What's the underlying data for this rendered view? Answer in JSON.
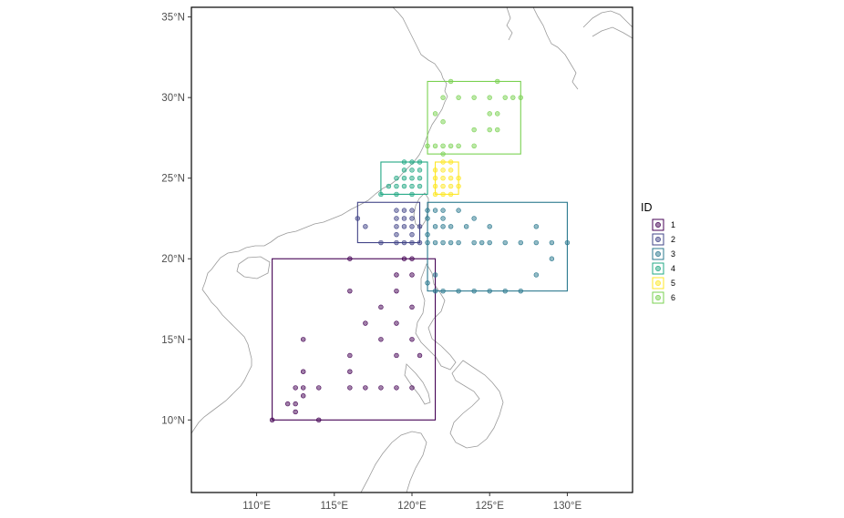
{
  "chart_data": {
    "type": "scatter",
    "title": "",
    "xlabel": "",
    "ylabel": "",
    "xlim": [
      105.8,
      134.2
    ],
    "ylim": [
      5.5,
      35.6
    ],
    "x_ticks": [
      {
        "value": 110,
        "label": "110°E"
      },
      {
        "value": 115,
        "label": "115°E"
      },
      {
        "value": 120,
        "label": "120°E"
      },
      {
        "value": 125,
        "label": "125°E"
      },
      {
        "value": 130,
        "label": "130°E"
      }
    ],
    "y_ticks": [
      {
        "value": 10,
        "label": "10°N"
      },
      {
        "value": 15,
        "label": "15°N"
      },
      {
        "value": 20,
        "label": "20°N"
      },
      {
        "value": 25,
        "label": "25°N"
      },
      {
        "value": 30,
        "label": "30°N"
      }
    ],
    "y_top_label": {
      "value": 35,
      "label": "35°N"
    },
    "grid": false,
    "legend": {
      "title": "ID",
      "position": "right"
    },
    "series": [
      {
        "name": "1",
        "color": "#440154",
        "box": {
          "lon": [
            111,
            121.5
          ],
          "lat": [
            10,
            20
          ]
        },
        "points": [
          [
            111,
            10
          ],
          [
            112,
            11
          ],
          [
            112.5,
            12
          ],
          [
            112.5,
            11
          ],
          [
            113,
            11.5
          ],
          [
            113,
            12
          ],
          [
            113,
            13
          ],
          [
            113,
            15
          ],
          [
            112.5,
            10.5
          ],
          [
            114,
            10
          ],
          [
            114,
            12
          ],
          [
            116,
            12
          ],
          [
            116,
            13
          ],
          [
            116,
            14
          ],
          [
            116,
            18
          ],
          [
            116,
            20
          ],
          [
            117,
            16
          ],
          [
            117,
            12
          ],
          [
            118,
            17
          ],
          [
            118,
            15
          ],
          [
            118,
            12
          ],
          [
            119,
            19
          ],
          [
            119,
            18
          ],
          [
            119,
            16
          ],
          [
            119,
            14
          ],
          [
            119,
            12
          ],
          [
            119.5,
            20
          ],
          [
            120,
            17
          ],
          [
            120,
            15
          ],
          [
            120,
            12
          ],
          [
            120.5,
            14
          ],
          [
            120,
            19
          ],
          [
            120,
            20
          ]
        ]
      },
      {
        "name": "2",
        "color": "#414487",
        "box": {
          "lon": [
            116.5,
            120.5
          ],
          "lat": [
            21,
            23.5
          ]
        },
        "points": [
          [
            116.5,
            22.5
          ],
          [
            117,
            22
          ],
          [
            118,
            21
          ],
          [
            119,
            21
          ],
          [
            119.5,
            21
          ],
          [
            119,
            21.5
          ],
          [
            119,
            22
          ],
          [
            119,
            22.5
          ],
          [
            119,
            23
          ],
          [
            119.5,
            22
          ],
          [
            119.5,
            22.5
          ],
          [
            119.5,
            23
          ],
          [
            120,
            21
          ],
          [
            120,
            21.5
          ],
          [
            120,
            22
          ],
          [
            120,
            22.5
          ],
          [
            120,
            23
          ],
          [
            120.5,
            21
          ],
          [
            120.5,
            22
          ]
        ]
      },
      {
        "name": "3",
        "color": "#2a788e",
        "box": {
          "lon": [
            121,
            130
          ],
          "lat": [
            18,
            23.5
          ]
        },
        "points": [
          [
            121,
            23
          ],
          [
            121,
            22.5
          ],
          [
            121,
            21.5
          ],
          [
            121,
            21
          ],
          [
            121.5,
            23
          ],
          [
            121.5,
            22
          ],
          [
            121.5,
            21
          ],
          [
            122,
            23
          ],
          [
            122,
            22.5
          ],
          [
            122,
            22
          ],
          [
            122,
            21
          ],
          [
            122.5,
            22
          ],
          [
            122.5,
            21
          ],
          [
            123,
            23
          ],
          [
            123,
            21
          ],
          [
            123.5,
            22
          ],
          [
            124,
            22.5
          ],
          [
            124,
            21
          ],
          [
            124.5,
            21
          ],
          [
            125,
            22
          ],
          [
            125,
            21
          ],
          [
            126,
            21
          ],
          [
            127,
            21
          ],
          [
            128,
            22
          ],
          [
            128,
            21
          ],
          [
            128,
            19
          ],
          [
            129,
            21
          ],
          [
            129,
            20
          ],
          [
            130,
            21
          ],
          [
            121.5,
            18
          ],
          [
            122,
            18
          ],
          [
            123,
            18
          ],
          [
            124,
            18
          ],
          [
            125,
            18
          ],
          [
            126,
            18
          ],
          [
            127,
            18
          ],
          [
            121.5,
            19
          ],
          [
            121,
            18.5
          ]
        ]
      },
      {
        "name": "4",
        "color": "#22a884",
        "box": {
          "lon": [
            118,
            121
          ],
          "lat": [
            24,
            26
          ]
        },
        "points": [
          [
            118,
            24
          ],
          [
            118.5,
            24.5
          ],
          [
            119,
            24
          ],
          [
            119,
            24.5
          ],
          [
            119,
            25
          ],
          [
            119.5,
            24.5
          ],
          [
            119.5,
            25
          ],
          [
            119.5,
            25.5
          ],
          [
            119.5,
            26
          ],
          [
            120,
            24
          ],
          [
            120,
            24.5
          ],
          [
            120,
            25
          ],
          [
            120,
            25.5
          ],
          [
            120,
            26
          ],
          [
            120.5,
            24.5
          ],
          [
            120.5,
            25
          ],
          [
            120.5,
            25.5
          ],
          [
            120.5,
            26
          ]
        ]
      },
      {
        "name": "5",
        "color": "#fde725",
        "box": {
          "lon": [
            121.5,
            123
          ],
          "lat": [
            24,
            26
          ]
        },
        "points": [
          [
            121.5,
            24
          ],
          [
            121.5,
            24.5
          ],
          [
            121.5,
            25
          ],
          [
            121.5,
            25.5
          ],
          [
            122,
            24
          ],
          [
            122,
            24.5
          ],
          [
            122,
            25
          ],
          [
            122,
            25.5
          ],
          [
            122,
            26
          ],
          [
            122.5,
            24
          ],
          [
            122.5,
            24.5
          ],
          [
            122.5,
            25
          ],
          [
            122.5,
            25.5
          ],
          [
            122.5,
            26
          ],
          [
            123,
            24.5
          ],
          [
            123,
            25
          ]
        ]
      },
      {
        "name": "6",
        "color": "#7ad151",
        "box": {
          "lon": [
            121,
            127
          ],
          "lat": [
            26.5,
            31
          ]
        },
        "points": [
          [
            121,
            27
          ],
          [
            121.5,
            27
          ],
          [
            122,
            27
          ],
          [
            122.5,
            27
          ],
          [
            122,
            26.5
          ],
          [
            123,
            27
          ],
          [
            124,
            27
          ],
          [
            124,
            28
          ],
          [
            125,
            28
          ],
          [
            125.5,
            28
          ],
          [
            125,
            29
          ],
          [
            125.5,
            29
          ],
          [
            124,
            30
          ],
          [
            125,
            30
          ],
          [
            126,
            30
          ],
          [
            127,
            30
          ],
          [
            126.5,
            30
          ],
          [
            122,
            30
          ],
          [
            123,
            30
          ],
          [
            122.5,
            31
          ],
          [
            125.5,
            31
          ],
          [
            121.5,
            29
          ],
          [
            122,
            28.5
          ]
        ]
      }
    ]
  },
  "legend_items": [
    {
      "label": "1"
    },
    {
      "label": "2"
    },
    {
      "label": "3"
    },
    {
      "label": "4"
    },
    {
      "label": "5"
    },
    {
      "label": "6"
    }
  ]
}
